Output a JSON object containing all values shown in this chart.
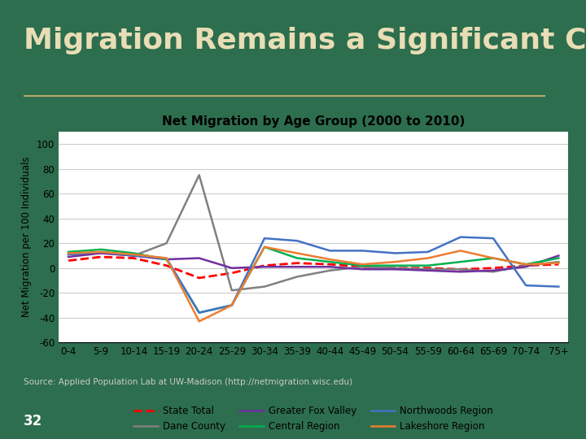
{
  "title": "Migration Remains a Significant Challenge",
  "chart_title": "Net Migration by Age Group (2000 to 2010)",
  "ylabel": "Net Migration per 100 Individuals",
  "source": "Source: Applied Population Lab at UW-Madison (http://netmigration.wisc.edu)",
  "page_num": "32",
  "background_color": "#2d6e4e",
  "chart_bg": "#ffffff",
  "title_color": "#e8ddb5",
  "categories": [
    "0-4",
    "5-9",
    "10-14",
    "15-19",
    "20-24",
    "25-29",
    "30-34",
    "35-39",
    "40-44",
    "45-49",
    "50-54",
    "55-59",
    "60-64",
    "65-69",
    "70-74",
    "75+"
  ],
  "series": {
    "State Total": {
      "values": [
        6,
        9,
        8,
        2,
        -8,
        -4,
        2,
        4,
        3,
        1,
        0,
        0,
        -1,
        0,
        2,
        3
      ],
      "color": "#ff0000",
      "linestyle": "dashed",
      "linewidth": 2.0
    },
    "Dane County": {
      "values": [
        11,
        12,
        10,
        20,
        75,
        -18,
        -15,
        -7,
        -2,
        1,
        0,
        -1,
        -1,
        -3,
        2,
        5
      ],
      "color": "#808080",
      "linestyle": "solid",
      "linewidth": 1.8
    },
    "Greater Fox Valley": {
      "values": [
        9,
        12,
        10,
        7,
        8,
        0,
        1,
        1,
        1,
        -1,
        -1,
        -2,
        -3,
        -2,
        1,
        10
      ],
      "color": "#7030a0",
      "linestyle": "solid",
      "linewidth": 1.8
    },
    "Central Region": {
      "values": [
        13,
        15,
        12,
        7,
        -36,
        -30,
        17,
        8,
        5,
        2,
        2,
        2,
        5,
        8,
        3,
        8
      ],
      "color": "#00b050",
      "linestyle": "solid",
      "linewidth": 1.8
    },
    "Northwoods Region": {
      "values": [
        11,
        13,
        10,
        8,
        -36,
        -30,
        24,
        22,
        14,
        14,
        12,
        13,
        25,
        24,
        -14,
        -15
      ],
      "color": "#4472c4",
      "linestyle": "solid",
      "linewidth": 1.8
    },
    "Lakeshore Region": {
      "values": [
        12,
        13,
        11,
        8,
        -43,
        -30,
        17,
        12,
        7,
        3,
        5,
        8,
        14,
        8,
        3,
        4
      ],
      "color": "#ed7d31",
      "linestyle": "solid",
      "linewidth": 1.8
    }
  },
  "ylim": [
    -60,
    110
  ],
  "yticks": [
    -60,
    -40,
    -20,
    0,
    20,
    40,
    60,
    80,
    100
  ],
  "title_fontsize": 26,
  "chart_title_fontsize": 11,
  "axis_fontsize": 8.5,
  "source_fontsize": 7.5,
  "legend_fontsize": 8.5,
  "separator_color": "#b8a96a"
}
